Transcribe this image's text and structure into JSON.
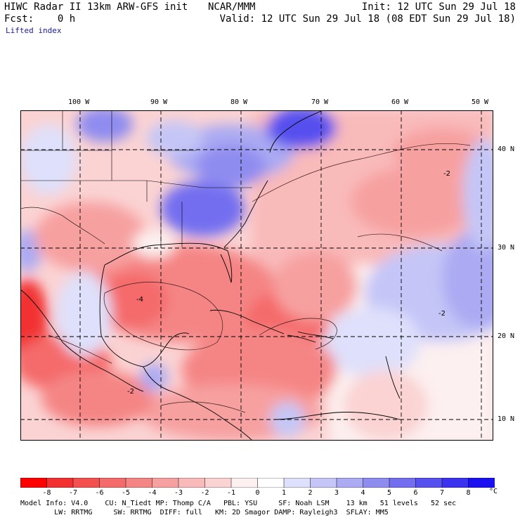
{
  "header": {
    "title_left": "HIWC Radar II 13km ARW-GFS init",
    "title_right_center": "NCAR/MMM",
    "init": "Init: 12 UTC Sun 29 Jul 18",
    "fcst": "Fcst:    0 h",
    "valid": "Valid: 12 UTC Sun 29 Jul 18 (08 EDT Sun 29 Jul 18)",
    "field": "Lifted index"
  },
  "axes": {
    "lon_labels": [
      "100 W",
      "90 W",
      "80 W",
      "70 W",
      "60 W",
      "50 W"
    ],
    "lat_labels": [
      "40 N",
      "30 N",
      "20 N",
      "10 N"
    ]
  },
  "contour_labels": [
    "-2",
    "-4",
    "-2",
    "-2"
  ],
  "colorbar": {
    "labels": [
      "-8",
      "-7",
      "-6",
      "-5",
      "-4",
      "-3",
      "-2",
      "-1",
      "0",
      "1",
      "2",
      "3",
      "4",
      "5",
      "6",
      "7",
      "8"
    ],
    "unit": "°C",
    "colors": [
      "#ff0000",
      "#f23030",
      "#f55050",
      "#f56b6b",
      "#f58585",
      "#f7a0a0",
      "#f9baba",
      "#fbd3d3",
      "#fdf0f0",
      "#ffffff",
      "#dfe0fb",
      "#c5c6f7",
      "#abaaf3",
      "#8f8cf0",
      "#736ef0",
      "#5650ee",
      "#3a32ee",
      "#1a10f0"
    ]
  },
  "footer": {
    "line1": "Model Info: V4.0    CU: N_Tiedt MP: Thomp C/A   PBL: YSU     SF: Noah LSM    13 km   51 levels   52 sec",
    "line2": "        LW: RRTMG     SW: RRTMG  DIFF: full   KM: 2D Smagor DAMP: Rayleigh3  SFLAY: MM5"
  }
}
